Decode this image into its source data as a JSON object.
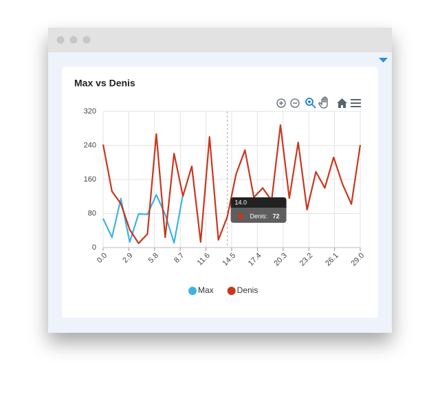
{
  "chart_data": {
    "type": "line",
    "title": "Max vs Denis",
    "x": [
      0,
      1,
      2,
      3,
      4,
      5,
      6,
      7,
      8,
      9,
      10,
      11,
      12,
      13,
      14,
      15,
      16,
      17,
      18,
      19,
      20,
      21,
      22,
      23,
      24,
      25,
      26,
      27,
      28,
      29
    ],
    "series": [
      {
        "name": "Max",
        "color": "#3cb4e0",
        "values": [
          68,
          24,
          115,
          13,
          79,
          78,
          124,
          78,
          11,
          124,
          null,
          null,
          null,
          null,
          null,
          null,
          null,
          null,
          null,
          null,
          null,
          null,
          null,
          null,
          null,
          null,
          null,
          null,
          null,
          null
        ]
      },
      {
        "name": "Denis",
        "color": "#c9361c",
        "values": [
          242,
          132,
          103,
          42,
          10,
          32,
          267,
          24,
          221,
          121,
          191,
          13,
          260,
          18,
          72,
          173,
          229,
          118,
          140,
          110,
          288,
          116,
          247,
          89,
          178,
          140,
          212,
          149,
          102,
          241
        ]
      }
    ],
    "xlim": [
      0,
      29
    ],
    "ylim": [
      0,
      320
    ],
    "xticks": [
      {
        "value": 0,
        "label": "0.0"
      },
      2.9,
      5.8,
      8.7,
      11.6,
      14.5,
      17.4,
      20.3,
      23.2,
      26.1,
      {
        "value": 29,
        "label": "29.0"
      }
    ],
    "yticks": [
      0,
      80,
      160,
      240,
      320
    ],
    "grid": true,
    "legend": "bottom",
    "tooltip": {
      "x": {
        "value": 14,
        "label": "14.0"
      },
      "label": "Denis:",
      "series": 1
    }
  }
}
